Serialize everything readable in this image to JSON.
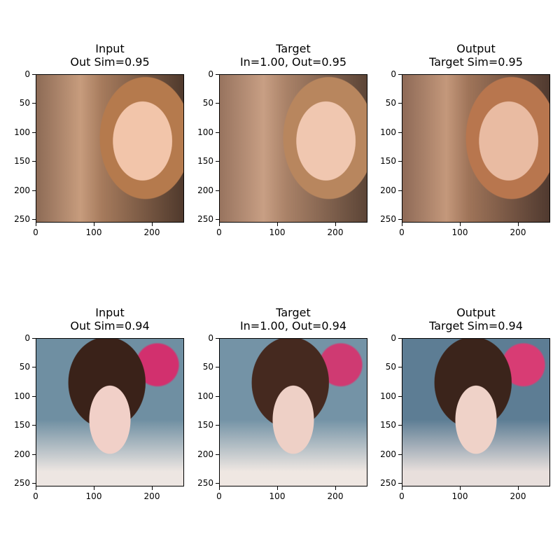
{
  "panels": [
    {
      "title_line1": "Input",
      "title_line2": "Out Sim=0.95",
      "style": "face-a-sharp"
    },
    {
      "title_line1": "Target",
      "title_line2": "In=1.00, Out=0.95",
      "style": "face-a-soft"
    },
    {
      "title_line1": "Output",
      "title_line2": "Target Sim=0.95",
      "style": "face-a-gen"
    },
    {
      "title_line1": "Input",
      "title_line2": "Out Sim=0.94",
      "style": "face-b-sharp"
    },
    {
      "title_line1": "Target",
      "title_line2": "In=1.00, Out=0.94",
      "style": "face-b-soft"
    },
    {
      "title_line1": "Output",
      "title_line2": "Target Sim=0.94",
      "style": "face-b-gen"
    }
  ],
  "y_ticks": [
    "0",
    "50",
    "100",
    "150",
    "200",
    "250"
  ],
  "x_ticks": [
    "0",
    "100",
    "200"
  ]
}
